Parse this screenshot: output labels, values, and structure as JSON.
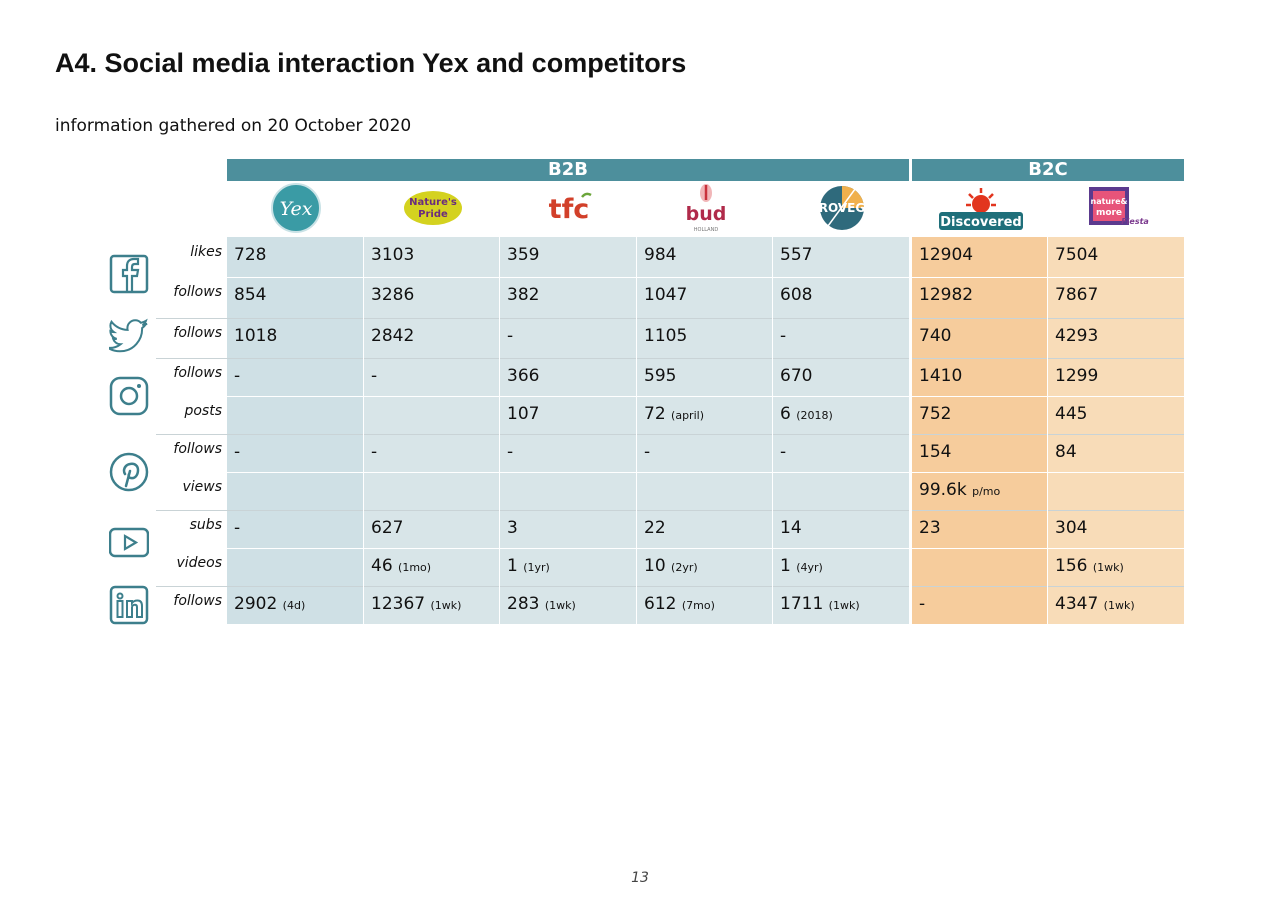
{
  "heading": {
    "title": "A4. Social media interaction Yex and competitors",
    "subtitle": "information gathered on 20 October 2020"
  },
  "groups": {
    "b2b": "B2B",
    "b2c": "B2C"
  },
  "brands": {
    "yex": "Yex",
    "natures_pride": [
      "Nature's",
      "Pride"
    ],
    "tfc": "tfc",
    "bud": "bud",
    "bud_sub": "HOLLAND",
    "roveg": "ROVEG",
    "discovered": "Discovered",
    "nature_more": [
      "nature&",
      "more"
    ],
    "nature_more_tag": "Fiesta"
  },
  "platforms": [
    "facebook-icon",
    "twitter-icon",
    "instagram-icon",
    "pinterest-icon",
    "youtube-icon",
    "linkedin-icon"
  ],
  "rows": {
    "fb_likes": {
      "label": "likes",
      "c": [
        "728",
        "3103",
        "359",
        "984",
        "557",
        "12904",
        "7504"
      ]
    },
    "fb_follows": {
      "label": "follows",
      "c": [
        "854",
        "3286",
        "382",
        "1047",
        "608",
        "12982",
        "7867"
      ]
    },
    "tw_follows": {
      "label": "follows",
      "c": [
        "1018",
        "2842",
        "-",
        "1105",
        "-",
        "740",
        "4293"
      ]
    },
    "ig_follows": {
      "label": "follows",
      "c": [
        "-",
        "-",
        "366",
        "595",
        "670",
        "1410",
        "1299"
      ]
    },
    "ig_posts": {
      "label": "posts",
      "c": [
        "",
        "",
        "107",
        "72",
        "6",
        "752",
        "445"
      ],
      "n": [
        "",
        "",
        "",
        "(april)",
        "(2018)",
        "",
        ""
      ]
    },
    "pi_follows": {
      "label": "follows",
      "c": [
        "-",
        "-",
        "-",
        "-",
        "-",
        "154",
        "84"
      ]
    },
    "pi_views": {
      "label": "views",
      "c": [
        "",
        "",
        "",
        "",
        "",
        "99.6k",
        ""
      ],
      "n": [
        "",
        "",
        "",
        "",
        "",
        "p/mo",
        ""
      ]
    },
    "yt_subs": {
      "label": "subs",
      "c": [
        "-",
        "627",
        "3",
        "22",
        "14",
        "23",
        "304"
      ]
    },
    "yt_videos": {
      "label": "videos",
      "c": [
        "",
        "46",
        "1",
        "10",
        "1",
        "",
        "156"
      ],
      "n": [
        "",
        "(1mo)",
        "(1yr)",
        "(2yr)",
        "(4yr)",
        "",
        "(1wk)"
      ]
    },
    "li_follows": {
      "label": "follows",
      "c": [
        "2902",
        "12367",
        "283",
        "612",
        "1711",
        "-",
        "4347"
      ],
      "n": [
        "(4d)",
        "(1wk)",
        "(1wk)",
        "(7mo)",
        "(1wk)",
        "",
        "(1wk)"
      ]
    }
  },
  "page": {
    "number": "13"
  },
  "colors": {
    "header": "#4d8f9c",
    "b2b_cell": "#d8e5e8",
    "b2b_yex_cell": "#cfe0e5",
    "b2c_cell_1": "#f6cc9c",
    "b2c_cell_2": "#f8dcb8",
    "icon": "#3d7f8c"
  }
}
